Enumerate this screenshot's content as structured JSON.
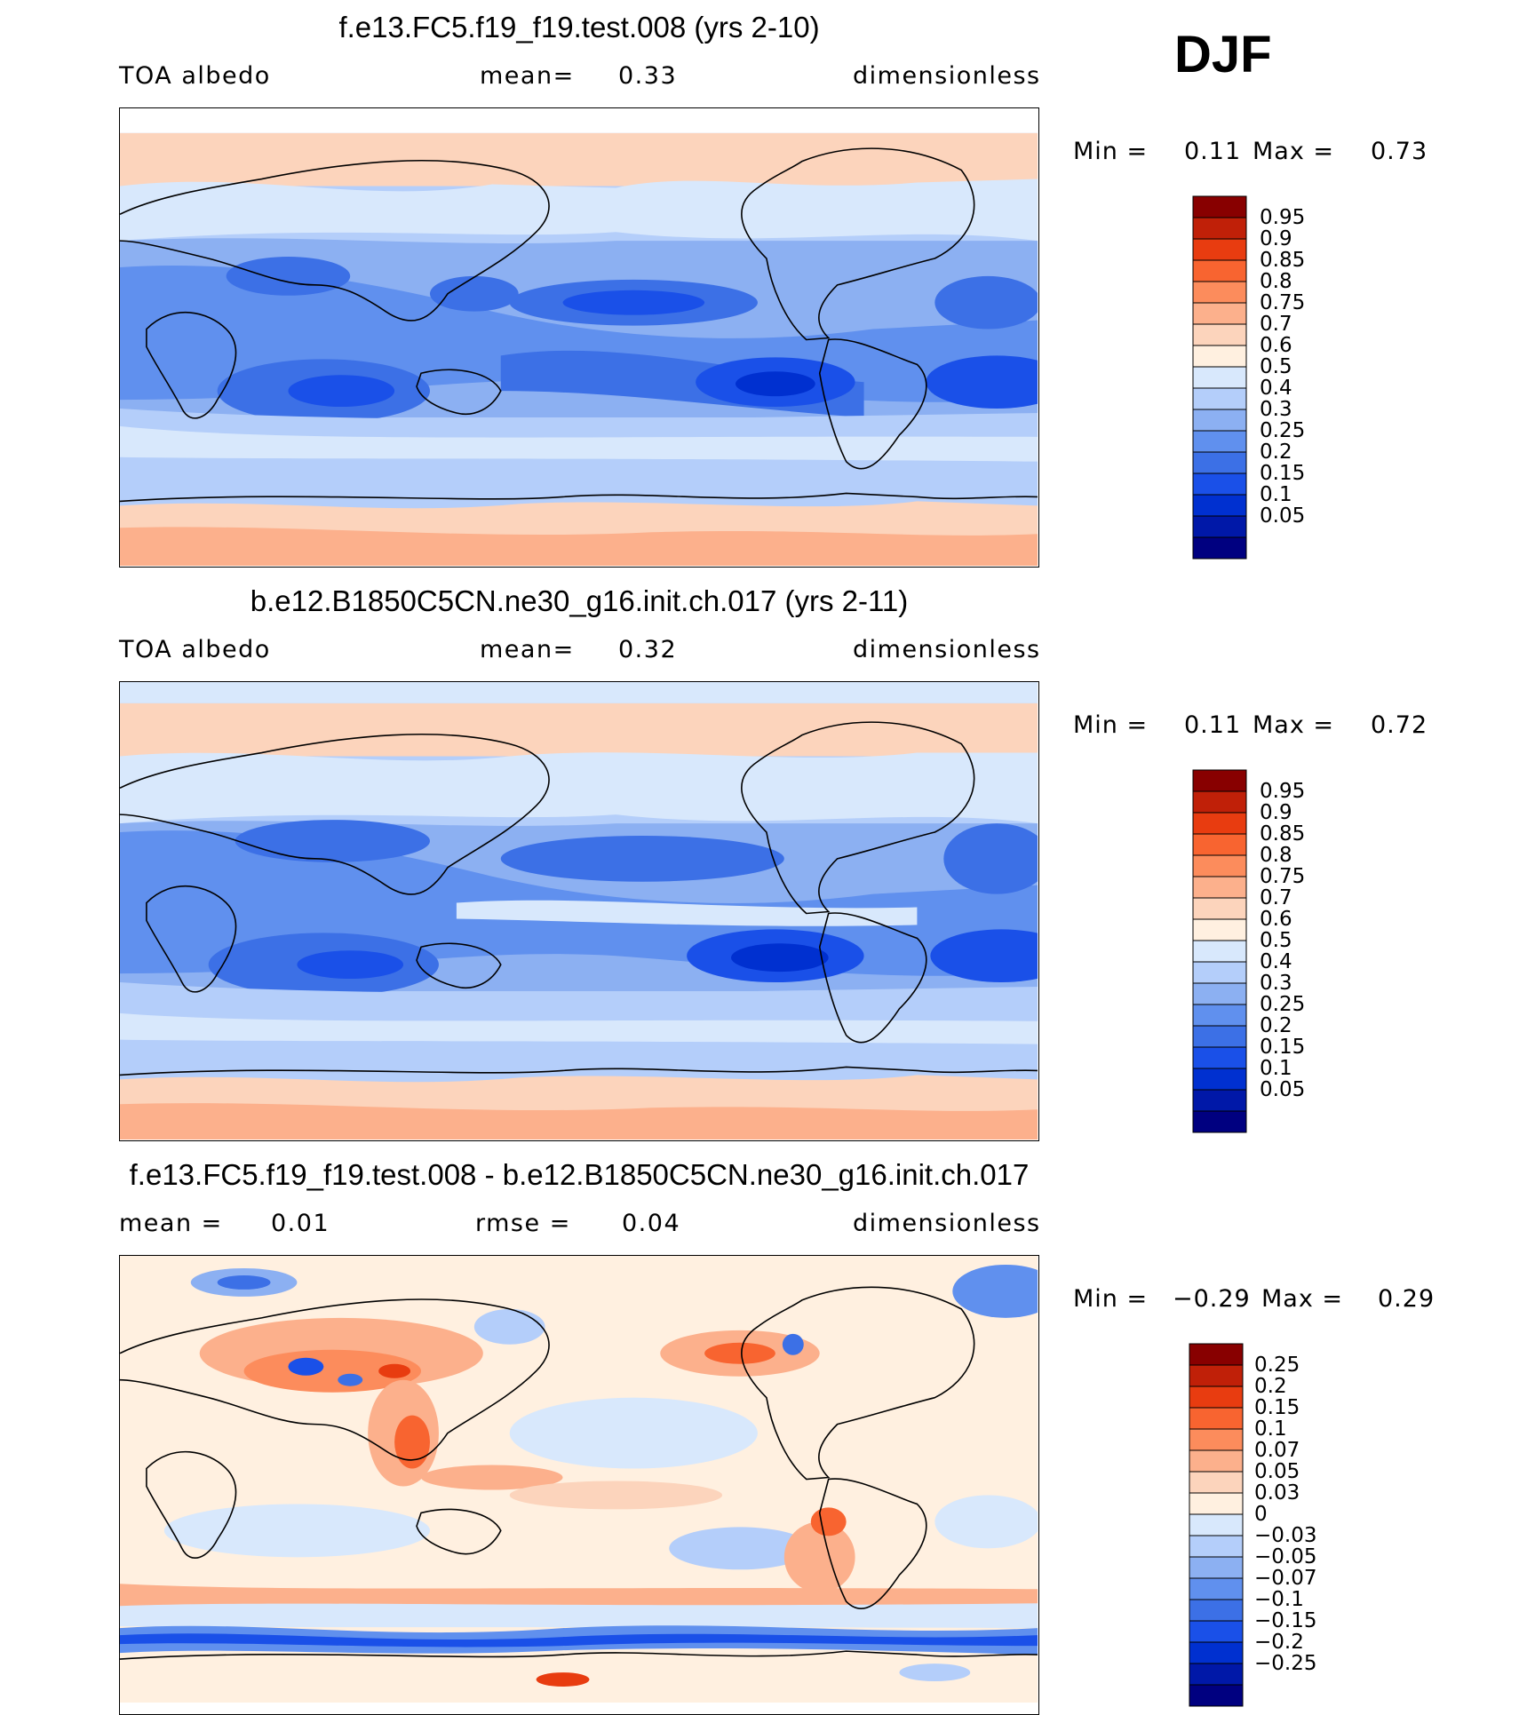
{
  "season": "DJF",
  "colors": {
    "abs": [
      "#000080",
      "#0018a8",
      "#0030d0",
      "#1a50e8",
      "#3c70e6",
      "#6090ee",
      "#8cb0f2",
      "#b4cefa",
      "#d8e8fc",
      "#fff0e0",
      "#fcd4bc",
      "#fcb08c",
      "#fc8c5c",
      "#f86430",
      "#e83c10",
      "#c02008",
      "#880000"
    ],
    "diff": [
      "#000080",
      "#0018a8",
      "#0030d0",
      "#1a50e8",
      "#3c70e6",
      "#6090ee",
      "#8cb0f2",
      "#b4cefa",
      "#d8e8fc",
      "#fff0e0",
      "#fcd4bc",
      "#fcb08c",
      "#fc8c5c",
      "#f86430",
      "#e83c10",
      "#c02008",
      "#880000"
    ]
  },
  "panels": [
    {
      "title": "f.e13.FC5.f19_f19.test.008 (yrs 2-10)",
      "left_label": "TOA albedo",
      "mid_key": "mean=",
      "mid_val": "0.33",
      "units": "dimensionless",
      "min_key": "Min =",
      "min_val": "0.11",
      "max_key": "Max =",
      "max_val": "0.73",
      "levels": [
        "0.95",
        "0.9",
        "0.85",
        "0.8",
        "0.75",
        "0.7",
        "0.6",
        "0.5",
        "0.4",
        "0.3",
        "0.25",
        "0.2",
        "0.15",
        "0.1",
        "0.05"
      ]
    },
    {
      "title": "b.e12.B1850C5CN.ne30_g16.init.ch.017 (yrs 2-11)",
      "left_label": "TOA albedo",
      "mid_key": "mean=",
      "mid_val": "0.32",
      "units": "dimensionless",
      "min_key": "Min =",
      "min_val": "0.11",
      "max_key": "Max =",
      "max_val": "0.72",
      "levels": [
        "0.95",
        "0.9",
        "0.85",
        "0.8",
        "0.75",
        "0.7",
        "0.6",
        "0.5",
        "0.4",
        "0.3",
        "0.25",
        "0.2",
        "0.15",
        "0.1",
        "0.05"
      ]
    },
    {
      "title": "f.e13.FC5.f19_f19.test.008 - b.e12.B1850C5CN.ne30_g16.init.ch.017",
      "left_key": "mean =",
      "left_val": "0.01",
      "mid_key": "rmse =",
      "mid_val": "0.04",
      "units": "dimensionless",
      "min_key": "Min =",
      "min_val": "−0.29",
      "max_key": "Max =",
      "max_val": "0.29",
      "levels": [
        "0.25",
        "0.2",
        "0.15",
        "0.1",
        "0.07",
        "0.05",
        "0.03",
        "0",
        "−0.03",
        "−0.05",
        "−0.07",
        "−0.1",
        "−0.15",
        "−0.2",
        "−0.25"
      ]
    }
  ]
}
